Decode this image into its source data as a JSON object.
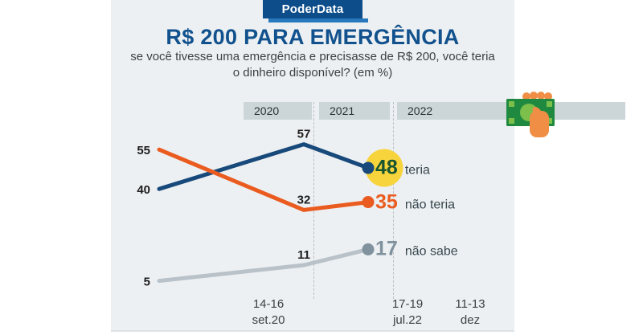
{
  "badge": {
    "label": "PoderData",
    "bg_color": "#0d4d8a",
    "accent_color": "#2878bd"
  },
  "header": {
    "title": "R$ 200 PARA EMERGÊNCIA",
    "subtitle_line1": "se você tivesse uma emergência e precisasse de R$ 200, você teria",
    "subtitle_line2": "o dinheiro disponível? (em %)",
    "title_color": "#11518d"
  },
  "year_band": {
    "labels": [
      "2020",
      "2021",
      "2022"
    ],
    "band_color": "#ccd6d9"
  },
  "icon": {
    "name": "hand-holding-money",
    "note_color": "#1f8a3f",
    "note_light_color": "#7cbf4b",
    "hand_color": "#ef8e44"
  },
  "chart_data": {
    "type": "line",
    "title": "R$ 200 PARA EMERGÊNCIA",
    "subtitle": "se você tivesse uma emergência e precisasse de R$ 200, você teria o dinheiro disponível? (em %)",
    "unit": "%",
    "x_tick_labels": [
      [
        "14-16",
        "set.20"
      ],
      [
        "17-19",
        "jul.22"
      ],
      [
        "11-13",
        "dez"
      ]
    ],
    "year_groups": [
      "2020",
      "2021",
      "2022"
    ],
    "ylim": [
      0,
      60
    ],
    "grid": "off",
    "legend_position": "right-of-last-point",
    "series": [
      {
        "name": "teria",
        "values": [
          40,
          57,
          48
        ],
        "line_color": "#17497b",
        "dot_color": "#17497b",
        "end_number_color": "#175430",
        "highlight_color": "#f7d33c"
      },
      {
        "name": "não teria",
        "values": [
          55,
          32,
          35
        ],
        "line_color": "#ea5b1f",
        "dot_color": "#ea5b1f",
        "end_number_color": "#ea5b1f",
        "highlight_color": null
      },
      {
        "name": "não sabe",
        "values": [
          5,
          11,
          17
        ],
        "line_color": "#b9c2c9",
        "dot_color": "#7f929e",
        "end_number_color": "#7f929e",
        "highlight_color": null
      }
    ]
  }
}
